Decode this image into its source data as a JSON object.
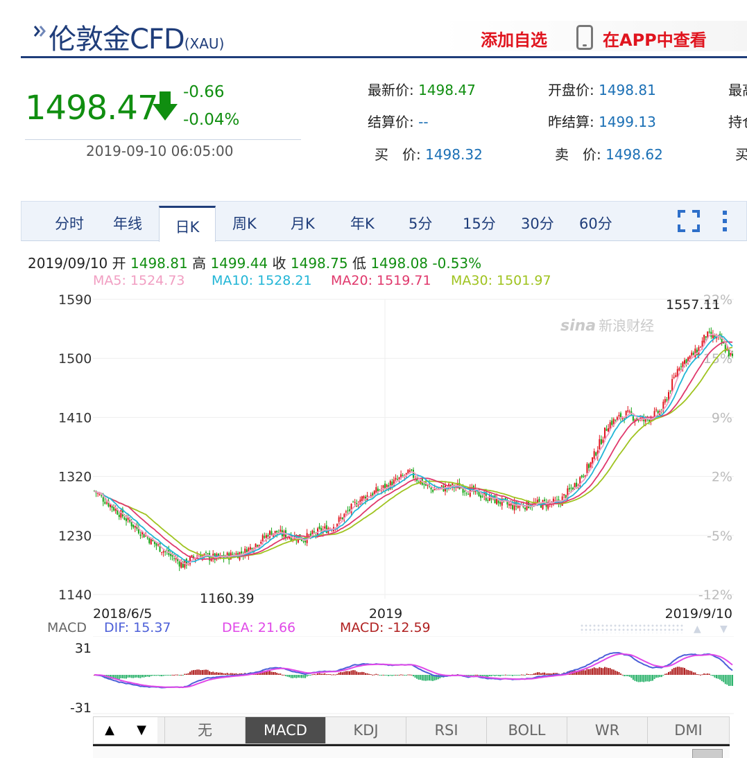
{
  "header": {
    "title": "伦敦金CFD",
    "code": "(XAU)",
    "add_watch": "添加自选",
    "view_in_app": "在APP中查看"
  },
  "quote": {
    "price": "1498.47",
    "change": "-0.66",
    "change_pct": "-0.04%",
    "time": "2019-09-10 06:05:00",
    "latest_label": "最新价:",
    "latest_value": "1498.47",
    "open_label": "开盘价:",
    "open_value": "1498.81",
    "high_label_cut": "最高",
    "settle_label": "结算价:",
    "settle_value": "--",
    "prev_settle_label": "昨结算:",
    "prev_settle_value": "1499.13",
    "hold_label_cut": "持仓",
    "bid_label": "买　价:",
    "bid_value": "1498.32",
    "ask_label": "卖　价:",
    "ask_value": "1498.62",
    "cut_label": "买",
    "colors": {
      "down": "#108e10",
      "value": "#1a6fb5"
    }
  },
  "tabs": [
    "分时",
    "年线",
    "日K",
    "周K",
    "月K",
    "年K",
    "5分",
    "15分",
    "30分",
    "60分"
  ],
  "active_tab": "日K",
  "info": {
    "date": "2019/09/10",
    "open_label": "开",
    "open": "1498.81",
    "high_label": "高",
    "high": "1499.44",
    "close_label": "收",
    "close": "1498.75",
    "low_label": "低",
    "low": "1498.08",
    "pct": "-0.53%",
    "ma5": "MA5: 1524.73",
    "ma10": "MA10: 1528.21",
    "ma20": "MA20: 1519.71",
    "ma30": "MA30: 1501.97"
  },
  "brand": {
    "logo": "sina",
    "name": "新浪财经"
  },
  "chart_data": {
    "type": "candlestick",
    "y_ticks": [
      1590,
      1500,
      1410,
      1320,
      1230,
      1140
    ],
    "pct_ticks": [
      "22%",
      "15%",
      "9%",
      "2%",
      "-5%",
      "-12%"
    ],
    "ylim": [
      1140,
      1590
    ],
    "x_labels": [
      "2018/6/5",
      "2019",
      "2019/9/10"
    ],
    "high_label": "1557.11",
    "low_label": "1160.39",
    "anchors": [
      [
        0,
        1298
      ],
      [
        18,
        1255
      ],
      [
        35,
        1215
      ],
      [
        50,
        1185
      ],
      [
        58,
        1200
      ],
      [
        70,
        1195
      ],
      [
        85,
        1205
      ],
      [
        100,
        1235
      ],
      [
        118,
        1225
      ],
      [
        135,
        1245
      ],
      [
        150,
        1285
      ],
      [
        165,
        1305
      ],
      [
        178,
        1325
      ],
      [
        190,
        1300
      ],
      [
        205,
        1305
      ],
      [
        220,
        1290
      ],
      [
        235,
        1275
      ],
      [
        250,
        1278
      ],
      [
        262,
        1280
      ],
      [
        272,
        1310
      ],
      [
        280,
        1340
      ],
      [
        290,
        1400
      ],
      [
        300,
        1415
      ],
      [
        310,
        1405
      ],
      [
        320,
        1420
      ],
      [
        330,
        1490
      ],
      [
        340,
        1510
      ],
      [
        345,
        1535
      ],
      [
        352,
        1530
      ],
      [
        360,
        1500
      ]
    ],
    "colors": {
      "up": "#e0141e",
      "down": "#16a516",
      "ma5": "#f19ec2",
      "ma10": "#21b5d6",
      "ma20": "#e0386c",
      "ma30": "#9fc31f"
    }
  },
  "macd": {
    "label": "MACD",
    "dif": "DIF: 15.37",
    "dea": "DEA: 21.66",
    "macd": "MACD: -12.59",
    "y_top": "31",
    "y_bottom": "-31",
    "colors": {
      "dif": "#4c5fd8",
      "dea": "#e048e8",
      "macd": "#b02020"
    }
  },
  "indicators": [
    "无",
    "MACD",
    "KDJ",
    "RSI",
    "BOLL",
    "WR",
    "DMI"
  ],
  "active_indicator": "MACD",
  "nav": {
    "up": "▲",
    "down": "▼"
  }
}
